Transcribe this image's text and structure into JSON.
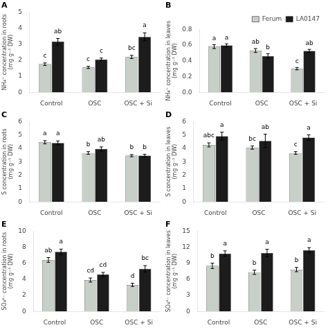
{
  "chart_data": [
    {
      "type": "bar",
      "title": "A",
      "y_label": "NH₄⁺ concentration in roots\n(mg g⁻¹ DW)",
      "categories": [
        "Control",
        "OSC",
        "OSC + Si"
      ],
      "series": [
        {
          "name": "Ferum",
          "color": "#c8cfc8",
          "values": [
            1.75,
            1.55,
            2.2
          ],
          "errors": [
            0.08,
            0.07,
            0.1
          ],
          "annotations": [
            "c",
            "c",
            "bc"
          ]
        },
        {
          "name": "LA0147",
          "color": "#1c1c1c",
          "values": [
            3.15,
            2.05,
            3.45
          ],
          "errors": [
            0.2,
            0.08,
            0.25
          ],
          "annotations": [
            "ab",
            "c",
            "a"
          ]
        }
      ],
      "ylim": [
        0,
        5
      ],
      "yticks": [
        0,
        1,
        2,
        3,
        4,
        5
      ],
      "grid": false
    },
    {
      "type": "bar",
      "title": "B",
      "y_label": "NH₄⁺ concentration in leaves\n(mg g⁻¹ DW)",
      "categories": [
        "Control",
        "OSC",
        "OSC + Si"
      ],
      "series": [
        {
          "name": "Ferum",
          "color": "#c8cfc8",
          "values": [
            0.58,
            0.53,
            0.3
          ],
          "errors": [
            0.025,
            0.025,
            0.015
          ],
          "annotations": [
            "a",
            "ab",
            "c"
          ]
        },
        {
          "name": "LA0147",
          "color": "#1c1c1c",
          "values": [
            0.595,
            0.46,
            0.525
          ],
          "errors": [
            0.02,
            0.03,
            0.02
          ],
          "annotations": [
            "a",
            "b",
            "ab"
          ]
        }
      ],
      "ylim": [
        0,
        0.8
      ],
      "yticks": [
        {
          "value": 0,
          "label": "0.0"
        },
        0.2,
        0.4,
        0.6,
        0.8
      ],
      "grid": false,
      "legend": "upper right"
    },
    {
      "type": "bar",
      "title": "C",
      "y_label": "S concentration in roots\n(mg g⁻¹ DW)",
      "categories": [
        "Control",
        "OSC",
        "OSC + Si"
      ],
      "series": [
        {
          "name": "Ferum",
          "color": "#c8cfc8",
          "values": [
            4.45,
            3.65,
            3.45
          ],
          "errors": [
            0.12,
            0.1,
            0.08
          ],
          "annotations": [
            "a",
            "b",
            "b"
          ]
        },
        {
          "name": "LA0147",
          "color": "#1c1c1c",
          "values": [
            4.4,
            3.95,
            3.45
          ],
          "errors": [
            0.15,
            0.15,
            0.1
          ],
          "annotations": [
            "a",
            "ab",
            "b"
          ]
        }
      ],
      "ylim": [
        0,
        6
      ],
      "yticks": [
        0,
        1,
        2,
        3,
        4,
        5,
        6
      ],
      "grid": false
    },
    {
      "type": "bar",
      "title": "D",
      "y_label": "S concentration in leaves\n(mg g⁻¹ DW)",
      "categories": [
        "Control",
        "OSC",
        "OSC + Si"
      ],
      "series": [
        {
          "name": "Ferum",
          "color": "#c8cfc8",
          "values": [
            4.25,
            4.05,
            3.65
          ],
          "errors": [
            0.15,
            0.12,
            0.1
          ],
          "annotations": [
            "abc",
            "bc",
            "c"
          ]
        },
        {
          "name": "LA0147",
          "color": "#1c1c1c",
          "values": [
            4.9,
            4.55,
            4.8
          ],
          "errors": [
            0.3,
            0.5,
            0.2
          ],
          "annotations": [
            "a",
            "ab",
            "a"
          ]
        }
      ],
      "ylim": [
        0,
        6
      ],
      "yticks": [
        0,
        1,
        2,
        3,
        4,
        5,
        6
      ],
      "grid": false
    },
    {
      "type": "bar",
      "title": "E",
      "y_label": "SO₄²⁻ concentration in roots\n(mg g⁻¹ DW)",
      "categories": [
        "Control",
        "OSC",
        "OSC + Si"
      ],
      "series": [
        {
          "name": "Ferum",
          "color": "#c8cfc8",
          "values": [
            6.4,
            3.9,
            3.3
          ],
          "errors": [
            0.3,
            0.25,
            0.2
          ],
          "annotations": [
            "ab",
            "cd",
            "d"
          ]
        },
        {
          "name": "LA0147",
          "color": "#1c1c1c",
          "values": [
            7.4,
            4.6,
            5.3
          ],
          "errors": [
            0.35,
            0.25,
            0.4
          ],
          "annotations": [
            "a",
            "cd",
            "bc"
          ]
        }
      ],
      "ylim": [
        0,
        10
      ],
      "yticks": [
        0,
        2,
        4,
        6,
        8,
        10
      ],
      "grid": false
    },
    {
      "type": "bar",
      "title": "F",
      "y_label": "SO₄²⁻ concentration in leaves\n(mg g⁻¹ DW)",
      "categories": [
        "Control",
        "OSC",
        "OSC + Si"
      ],
      "series": [
        {
          "name": "Ferum",
          "color": "#c8cfc8",
          "values": [
            8.5,
            7.3,
            7.8
          ],
          "errors": [
            0.5,
            0.4,
            0.4
          ],
          "annotations": [
            "b",
            "b",
            "b"
          ]
        },
        {
          "name": "LA0147",
          "color": "#1c1c1c",
          "values": [
            10.8,
            10.9,
            11.4
          ],
          "errors": [
            0.5,
            0.7,
            0.5
          ],
          "annotations": [
            "a",
            "a",
            "a"
          ]
        }
      ],
      "ylim": [
        0,
        15
      ],
      "yticks": [
        0,
        3,
        6,
        9,
        12,
        15
      ],
      "grid": false
    }
  ]
}
